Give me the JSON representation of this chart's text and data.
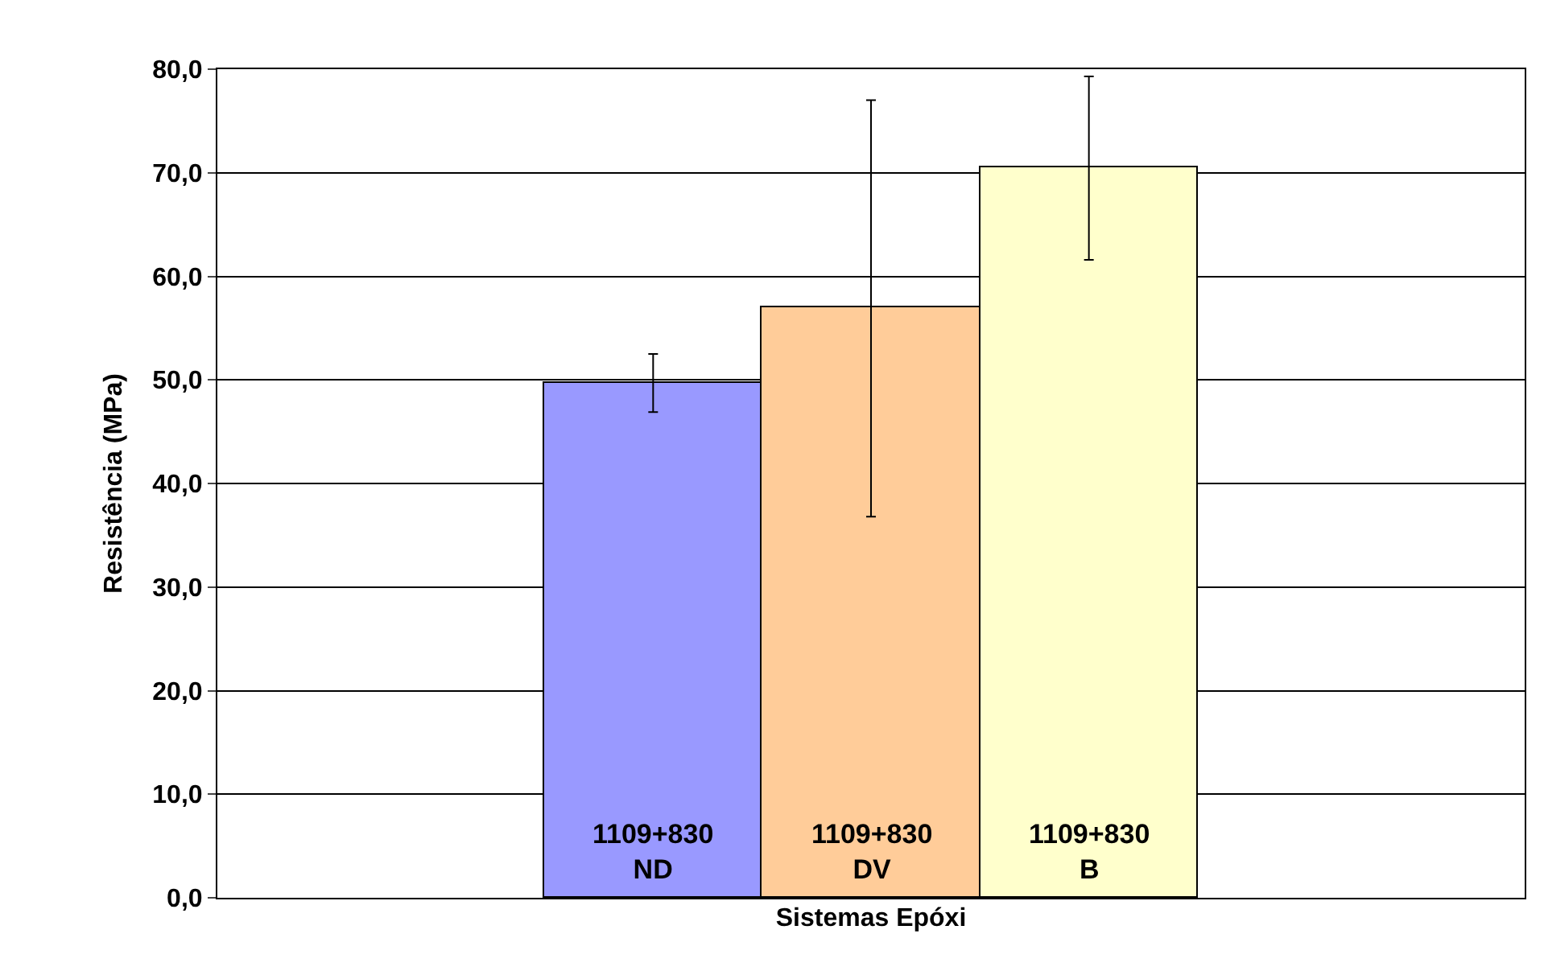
{
  "chart_data": {
    "type": "bar",
    "xlabel": "Sistemas Epóxi",
    "ylabel": "Resistência (MPa)",
    "categories": [
      "1109+830\nND",
      "1109+830\nDV",
      "1109+830\nB"
    ],
    "values": [
      49.7,
      57.0,
      70.5
    ],
    "colors": [
      "#9999ff",
      "#ffcc99",
      "#ffffcc"
    ],
    "errors": [
      [
        46.9,
        52.5
      ],
      [
        36.8,
        77.0
      ],
      [
        61.6,
        79.3
      ]
    ],
    "ylim": [
      0,
      80
    ],
    "yticks": [
      {
        "value": 0,
        "label": "0,0"
      },
      {
        "value": 10,
        "label": "10,0"
      },
      {
        "value": 20,
        "label": "20,0"
      },
      {
        "value": 30,
        "label": "30,0"
      },
      {
        "value": 40,
        "label": "40,0"
      },
      {
        "value": 50,
        "label": "50,0"
      },
      {
        "value": 60,
        "label": "60,0"
      },
      {
        "value": 70,
        "label": "70,0"
      },
      {
        "value": 80,
        "label": "80,0"
      }
    ],
    "grid": "y"
  }
}
